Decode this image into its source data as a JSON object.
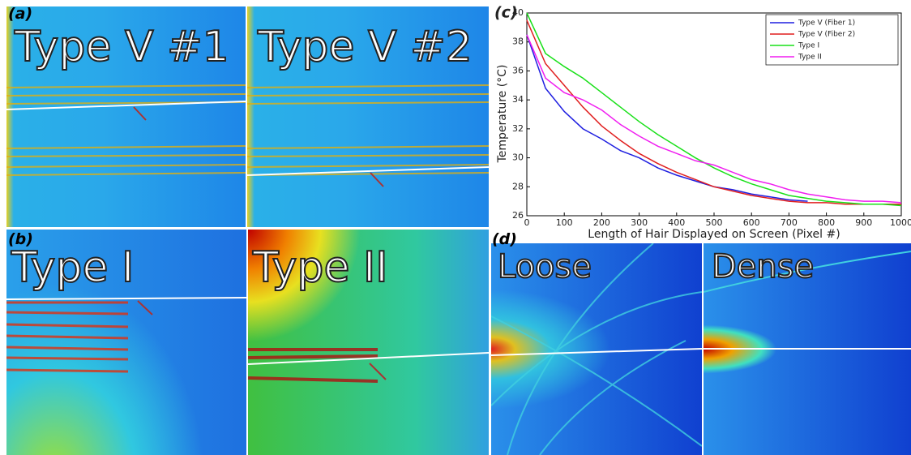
{
  "panels": {
    "a": {
      "label": "(a)",
      "left": "Type V #1",
      "right": "Type V #2"
    },
    "b": {
      "label": "(b)",
      "left": "Type I",
      "right": "Type II"
    },
    "d": {
      "label": "(d)",
      "left": "Loose",
      "right": "Dense"
    }
  },
  "chart_data": {
    "type": "line",
    "label": "(c)",
    "x_label": "Length of Hair Displayed on Screen (Pixel #)",
    "y_label": "Temperature (°C)",
    "x": [
      0,
      50,
      100,
      150,
      200,
      250,
      300,
      350,
      400,
      450,
      500,
      550,
      600,
      650,
      700,
      750,
      800,
      850,
      900,
      950,
      1000
    ],
    "series": [
      {
        "name": "Type V (Fiber 1)",
        "color": "#1f1fe0",
        "values": [
          38.5,
          34.8,
          33.2,
          32.0,
          31.3,
          30.5,
          30.0,
          29.3,
          28.8,
          28.4,
          28.0,
          27.8,
          27.5,
          27.3,
          27.1,
          27.0,
          null,
          null,
          null,
          null,
          null
        ]
      },
      {
        "name": "Type V (Fiber 2)",
        "color": "#e01f1f",
        "values": [
          39.5,
          36.5,
          35.0,
          33.5,
          32.2,
          31.2,
          30.3,
          29.6,
          29.0,
          28.5,
          28.0,
          27.7,
          27.4,
          27.2,
          27.0,
          26.9,
          26.9,
          26.8,
          26.8,
          26.8,
          26.8
        ]
      },
      {
        "name": "Type I",
        "color": "#19e019",
        "values": [
          40,
          37.2,
          36.3,
          35.5,
          34.5,
          33.5,
          32.5,
          31.6,
          30.8,
          30.0,
          29.3,
          28.7,
          28.2,
          27.8,
          27.4,
          27.2,
          27.0,
          26.9,
          26.8,
          26.8,
          26.7
        ]
      },
      {
        "name": "Type II",
        "color": "#f01ff0",
        "values": [
          38.5,
          35.5,
          34.5,
          34.0,
          33.3,
          32.3,
          31.5,
          30.8,
          30.3,
          29.8,
          29.5,
          29.0,
          28.5,
          28.2,
          27.8,
          27.5,
          27.3,
          27.1,
          27.0,
          27.0,
          26.9
        ]
      }
    ],
    "xlim": [
      0,
      1000
    ],
    "ylim": [
      26,
      40
    ],
    "xticks": [
      0,
      100,
      200,
      300,
      400,
      500,
      600,
      700,
      800,
      900,
      1000
    ],
    "yticks": [
      26,
      28,
      30,
      32,
      34,
      36,
      38,
      40
    ],
    "legend": "upper right"
  }
}
